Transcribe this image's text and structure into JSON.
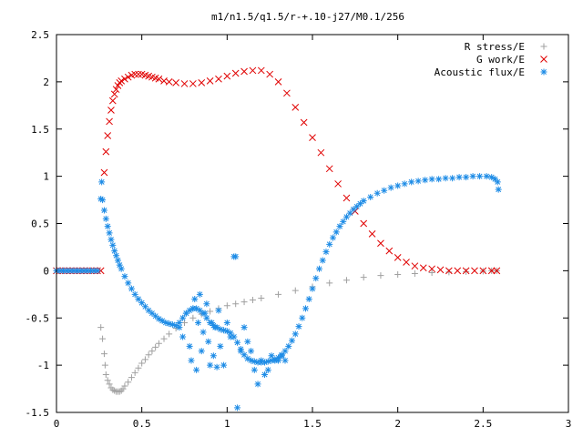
{
  "chart_data": {
    "type": "scatter",
    "title": "m1/n1.5/q1.5/r-+.10-j27/M0.1/256",
    "xlabel": "",
    "ylabel": "",
    "xlim": [
      0,
      3
    ],
    "ylim": [
      -1.5,
      2.5
    ],
    "xticks": [
      {
        "value": 0,
        "label": "0"
      },
      {
        "value": 0.5,
        "label": "0.5"
      },
      {
        "value": 1,
        "label": "1"
      },
      {
        "value": 1.5,
        "label": "1.5"
      },
      {
        "value": 2,
        "label": "2"
      },
      {
        "value": 2.5,
        "label": "2.5"
      },
      {
        "value": 3,
        "label": "3"
      }
    ],
    "yticks": [
      {
        "value": 2.5,
        "label": "2.5"
      },
      {
        "value": 2,
        "label": "2"
      },
      {
        "value": 1.5,
        "label": "1.5"
      },
      {
        "value": 1,
        "label": "1"
      },
      {
        "value": 0.5,
        "label": "0.5"
      },
      {
        "value": 0,
        "label": "0"
      },
      {
        "value": -0.5,
        "label": "-0.5"
      },
      {
        "value": -1,
        "label": "-1"
      },
      {
        "value": -1.5,
        "label": "-1.5"
      }
    ],
    "grid": false,
    "legend_position": "top-right",
    "series": [
      {
        "name": "R stress/E",
        "marker": "plus",
        "color": "#a0a0a0",
        "x": [
          0.26,
          0.27,
          0.28,
          0.285,
          0.29,
          0.3,
          0.31,
          0.32,
          0.33,
          0.34,
          0.35,
          0.36,
          0.37,
          0.38,
          0.39,
          0.4,
          0.42,
          0.44,
          0.46,
          0.48,
          0.5,
          0.52,
          0.54,
          0.56,
          0.58,
          0.6,
          0.63,
          0.66,
          0.7,
          0.75,
          0.8,
          0.85,
          0.9,
          0.95,
          1.0,
          1.05,
          1.1,
          1.15,
          1.2,
          1.3,
          1.4,
          1.5,
          1.6,
          1.7,
          1.8,
          1.9,
          2.0,
          2.1,
          2.2,
          2.3,
          2.4,
          2.5,
          2.55,
          2.58
        ],
        "y": [
          -0.6,
          -0.72,
          -0.88,
          -1.0,
          -1.1,
          -1.16,
          -1.2,
          -1.24,
          -1.26,
          -1.27,
          -1.28,
          -1.28,
          -1.28,
          -1.27,
          -1.25,
          -1.22,
          -1.18,
          -1.13,
          -1.08,
          -1.03,
          -0.98,
          -0.94,
          -0.89,
          -0.85,
          -0.81,
          -0.77,
          -0.72,
          -0.67,
          -0.61,
          -0.55,
          -0.5,
          -0.46,
          -0.43,
          -0.4,
          -0.37,
          -0.35,
          -0.33,
          -0.31,
          -0.29,
          -0.25,
          -0.21,
          -0.17,
          -0.13,
          -0.1,
          -0.07,
          -0.05,
          -0.04,
          -0.03,
          -0.02,
          -0.015,
          -0.01,
          -0.005,
          0.0,
          0.0
        ]
      },
      {
        "name": "G work/E",
        "marker": "cross",
        "color": "#e00000",
        "x": [
          0.0,
          0.02,
          0.04,
          0.06,
          0.08,
          0.1,
          0.12,
          0.14,
          0.16,
          0.18,
          0.2,
          0.22,
          0.24,
          0.26,
          0.28,
          0.29,
          0.3,
          0.31,
          0.32,
          0.33,
          0.34,
          0.35,
          0.36,
          0.37,
          0.38,
          0.4,
          0.42,
          0.44,
          0.46,
          0.48,
          0.5,
          0.52,
          0.54,
          0.56,
          0.58,
          0.6,
          0.63,
          0.66,
          0.7,
          0.75,
          0.8,
          0.85,
          0.9,
          0.95,
          1.0,
          1.05,
          1.1,
          1.15,
          1.2,
          1.25,
          1.3,
          1.35,
          1.4,
          1.45,
          1.5,
          1.55,
          1.6,
          1.65,
          1.7,
          1.75,
          1.8,
          1.85,
          1.9,
          1.95,
          2.0,
          2.05,
          2.1,
          2.15,
          2.2,
          2.25,
          2.3,
          2.35,
          2.4,
          2.45,
          2.5,
          2.55,
          2.58
        ],
        "y": [
          0.0,
          0.0,
          0.0,
          0.0,
          0.0,
          0.0,
          0.0,
          0.0,
          0.0,
          0.0,
          0.0,
          0.0,
          0.0,
          0.0,
          1.04,
          1.26,
          1.43,
          1.58,
          1.7,
          1.8,
          1.87,
          1.92,
          1.96,
          1.99,
          2.01,
          2.03,
          2.05,
          2.07,
          2.08,
          2.08,
          2.08,
          2.07,
          2.06,
          2.05,
          2.04,
          2.03,
          2.01,
          2.0,
          1.99,
          1.98,
          1.98,
          1.99,
          2.01,
          2.03,
          2.06,
          2.09,
          2.11,
          2.12,
          2.12,
          2.08,
          2.0,
          1.88,
          1.73,
          1.57,
          1.41,
          1.25,
          1.08,
          0.92,
          0.77,
          0.63,
          0.5,
          0.39,
          0.29,
          0.21,
          0.14,
          0.09,
          0.05,
          0.03,
          0.02,
          0.01,
          0.0,
          0.0,
          0.0,
          0.0,
          0.0,
          0.0,
          0.0
        ]
      },
      {
        "name": "Acoustic flux/E",
        "marker": "star",
        "color": "#1e8ce6",
        "x": [
          0.0,
          0.02,
          0.04,
          0.06,
          0.08,
          0.1,
          0.12,
          0.14,
          0.16,
          0.18,
          0.2,
          0.22,
          0.24,
          0.26,
          0.265,
          0.27,
          0.28,
          0.29,
          0.3,
          0.31,
          0.32,
          0.33,
          0.34,
          0.35,
          0.36,
          0.37,
          0.38,
          0.4,
          0.42,
          0.44,
          0.46,
          0.48,
          0.5,
          0.52,
          0.54,
          0.56,
          0.58,
          0.6,
          0.62,
          0.64,
          0.66,
          0.68,
          0.7,
          0.72,
          0.74,
          0.76,
          0.78,
          0.8,
          0.82,
          0.84,
          0.86,
          0.88,
          0.9,
          0.92,
          0.94,
          0.96,
          0.98,
          1.0,
          1.02,
          1.04,
          1.06,
          1.08,
          1.1,
          1.12,
          1.14,
          1.16,
          1.18,
          1.2,
          1.22,
          1.24,
          1.26,
          1.28,
          1.3,
          1.32,
          1.34,
          1.36,
          1.38,
          1.4,
          1.42,
          1.44,
          1.46,
          1.48,
          1.5,
          1.52,
          1.54,
          1.56,
          1.58,
          1.6,
          1.62,
          1.64,
          1.66,
          1.68,
          1.7,
          1.72,
          1.74,
          1.76,
          1.78,
          1.8,
          1.84,
          1.88,
          1.92,
          1.96,
          2.0,
          2.04,
          2.08,
          2.12,
          2.16,
          2.2,
          2.24,
          2.28,
          2.32,
          2.36,
          2.4,
          2.44,
          2.48,
          2.52,
          2.55,
          2.57,
          2.585,
          2.59
        ],
        "y": [
          0.0,
          0.0,
          0.0,
          0.0,
          0.0,
          0.0,
          0.0,
          0.0,
          0.0,
          0.0,
          0.0,
          0.0,
          0.0,
          0.76,
          0.94,
          0.75,
          0.64,
          0.55,
          0.47,
          0.4,
          0.33,
          0.27,
          0.21,
          0.16,
          0.11,
          0.06,
          0.02,
          -0.06,
          -0.13,
          -0.19,
          -0.25,
          -0.3,
          -0.34,
          -0.38,
          -0.42,
          -0.45,
          -0.48,
          -0.51,
          -0.53,
          -0.55,
          -0.56,
          -0.57,
          -0.58,
          -0.55,
          -0.5,
          -0.45,
          -0.42,
          -0.4,
          -0.4,
          -0.42,
          -0.45,
          -0.5,
          -0.55,
          -0.58,
          -0.6,
          -0.62,
          -0.63,
          -0.64,
          -0.66,
          -0.7,
          -0.76,
          -0.83,
          -0.89,
          -0.93,
          -0.95,
          -0.96,
          -0.97,
          -0.97,
          -0.97,
          -0.96,
          -0.95,
          -0.94,
          -0.92,
          -0.89,
          -0.85,
          -0.8,
          -0.74,
          -0.67,
          -0.59,
          -0.5,
          -0.4,
          -0.3,
          -0.19,
          -0.08,
          0.02,
          0.11,
          0.2,
          0.28,
          0.35,
          0.41,
          0.47,
          0.52,
          0.57,
          0.61,
          0.65,
          0.68,
          0.71,
          0.74,
          0.78,
          0.82,
          0.85,
          0.88,
          0.9,
          0.92,
          0.94,
          0.95,
          0.96,
          0.97,
          0.97,
          0.98,
          0.98,
          0.99,
          0.99,
          1.0,
          1.0,
          1.0,
          0.99,
          0.97,
          0.94,
          0.86
        ]
      },
      {
        "name": "",
        "marker": "star",
        "color": "#1e8ce6",
        "x": [
          0.72,
          0.74,
          0.76,
          0.78,
          0.79,
          0.8,
          0.81,
          0.82,
          0.83,
          0.84,
          0.85,
          0.86,
          0.87,
          0.88,
          0.89,
          0.9,
          0.91,
          0.92,
          0.93,
          0.94,
          0.95,
          0.96,
          0.98,
          1.0,
          1.02,
          1.04,
          1.05,
          1.06,
          1.08,
          1.1,
          1.12,
          1.14,
          1.16,
          1.18,
          1.2,
          1.22,
          1.24,
          1.26,
          1.28,
          1.3,
          1.32,
          1.34
        ],
        "y": [
          -0.6,
          -0.7,
          -0.45,
          -0.8,
          -0.95,
          -0.4,
          -0.3,
          -1.05,
          -0.55,
          -0.25,
          -0.85,
          -0.65,
          -0.45,
          -0.35,
          -0.75,
          -1.0,
          -0.55,
          -0.9,
          -0.6,
          -1.02,
          -0.42,
          -0.8,
          -1.0,
          -0.55,
          -0.7,
          0.15,
          0.15,
          -1.45,
          -0.85,
          -0.6,
          -0.75,
          -0.85,
          -1.05,
          -1.2,
          -0.95,
          -1.1,
          -1.05,
          -0.9,
          -0.95,
          -0.95,
          -0.9,
          -0.95
        ]
      }
    ]
  }
}
